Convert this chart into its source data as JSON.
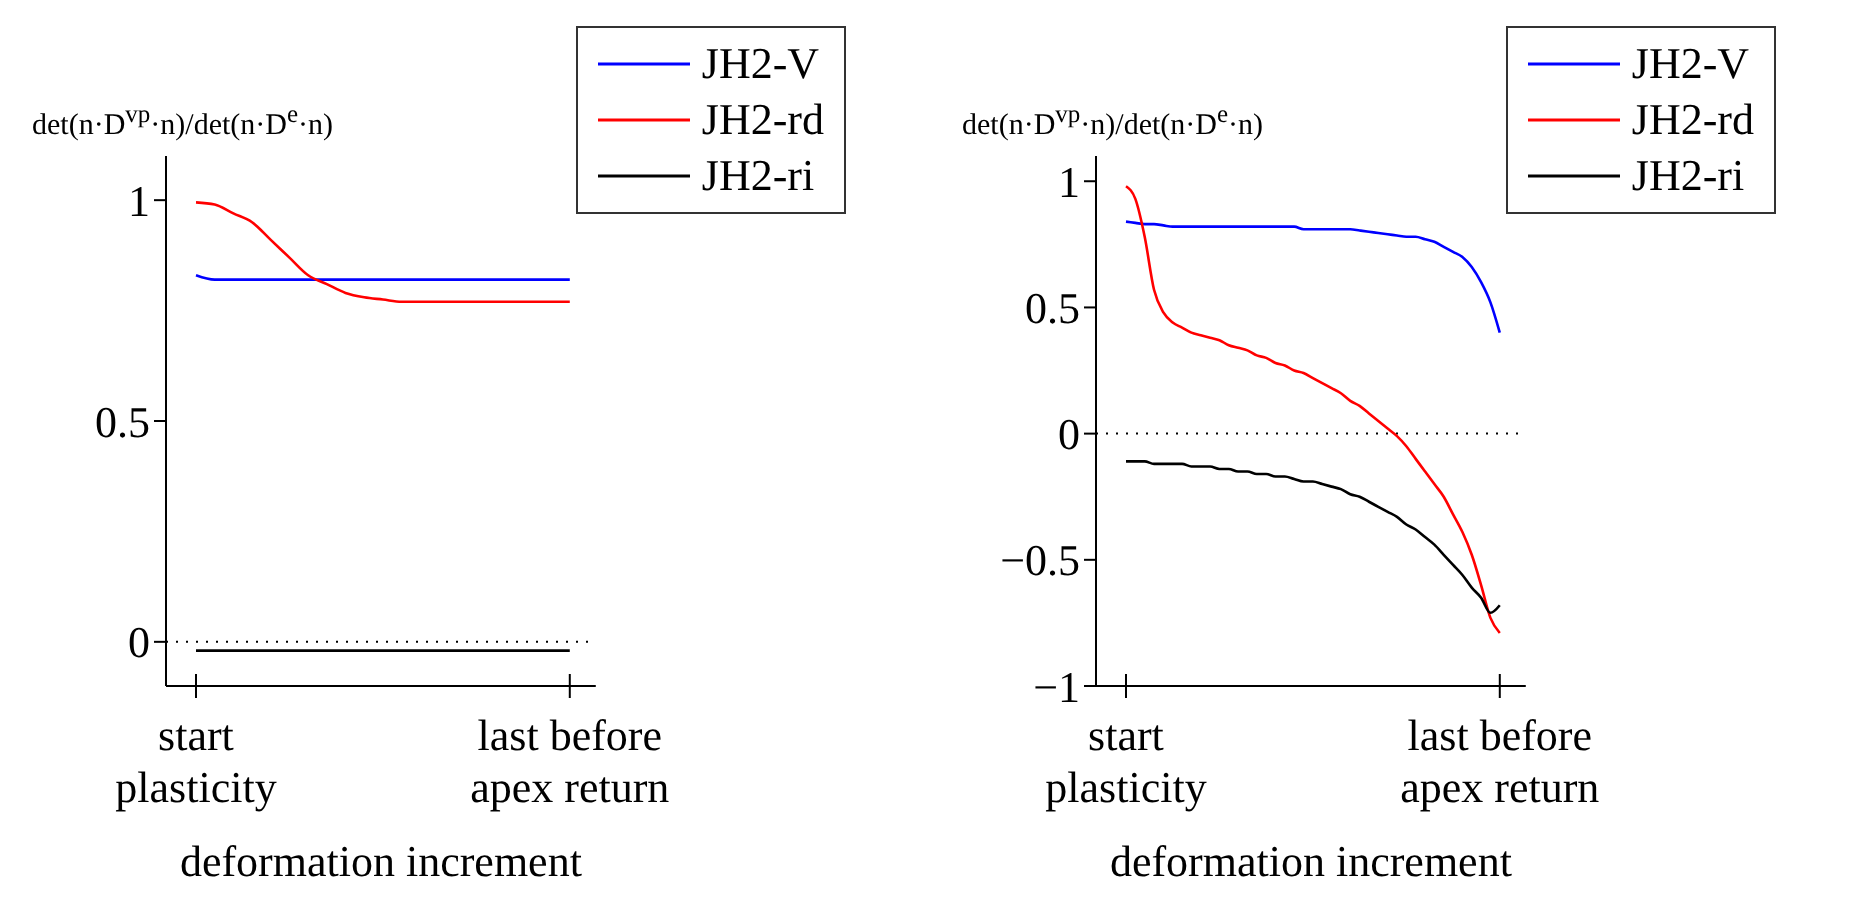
{
  "chart_data": [
    {
      "type": "line",
      "xlabel": "deformation increment",
      "ylabel": "det(n·D$^{vp}$·n)/det(n·D$^{e}$·n)",
      "ylim": [
        -0.1,
        1.1
      ],
      "categories": [
        "start plasticity",
        null,
        null,
        null,
        null,
        null,
        null,
        null,
        null,
        null,
        null,
        null,
        null,
        null,
        null,
        null,
        null,
        null,
        null,
        null,
        "last before apex return"
      ],
      "yticks": [
        0,
        0.5,
        1
      ],
      "legend": "top right",
      "marker": "none",
      "line_style": "solid",
      "ref_lines": [
        {
          "axis": "y",
          "value": 0,
          "label": null,
          "color": "#000000",
          "line_style": "dotted"
        }
      ],
      "series": [
        {
          "name": "JH2-V",
          "color": "#0000ff",
          "values": [
            0.83,
            0.82,
            0.82,
            0.82,
            0.82,
            0.82,
            0.82,
            0.82,
            0.82,
            0.82,
            0.82,
            0.82,
            0.82,
            0.82,
            0.82,
            0.82,
            0.82,
            0.82,
            0.82,
            0.82,
            0.82
          ]
        },
        {
          "name": "JH2-rd",
          "color": "#ff0000",
          "values": [
            0.995,
            0.99,
            0.97,
            0.95,
            0.91,
            0.87,
            0.83,
            0.81,
            0.79,
            0.78,
            0.775,
            0.77,
            0.77,
            0.77,
            0.77,
            0.77,
            0.77,
            0.77,
            0.77,
            0.77,
            0.77
          ]
        },
        {
          "name": "JH2-ri",
          "color": "#000000",
          "values": [
            -0.02,
            -0.02,
            -0.02,
            -0.02,
            -0.02,
            -0.02,
            -0.02,
            -0.02,
            -0.02,
            -0.02,
            -0.02,
            -0.02,
            -0.02,
            -0.02,
            -0.02,
            -0.02,
            -0.02,
            -0.02,
            -0.02,
            -0.02,
            -0.02
          ]
        }
      ]
    },
    {
      "type": "line",
      "xlabel": "deformation increment",
      "ylabel": "det(n·D$^{vp}$·n)/det(n·D$^{e}$·n)",
      "ylim": [
        -1,
        1.1
      ],
      "categories": [
        "start plasticity",
        null,
        null,
        null,
        null,
        null,
        null,
        null,
        null,
        null,
        null,
        null,
        null,
        null,
        null,
        null,
        null,
        null,
        null,
        null,
        null,
        null,
        null,
        null,
        null,
        null,
        null,
        null,
        null,
        null,
        null,
        null,
        null,
        null,
        null,
        null,
        null,
        null,
        null,
        null,
        "last before apex return"
      ],
      "yticks": [
        {
          "value": -1,
          "label": "−1"
        },
        {
          "value": -0.5,
          "label": "−0.5"
        },
        0,
        0.5,
        1
      ],
      "legend": "top right",
      "marker": "none",
      "line_style": "solid",
      "ref_lines": [
        {
          "axis": "y",
          "value": 0,
          "label": null,
          "color": "#000000",
          "line_style": "dotted"
        }
      ],
      "series": [
        {
          "name": "JH2-V",
          "color": "#0000ff",
          "values": [
            0.84,
            0.835,
            0.83,
            0.83,
            0.825,
            0.82,
            0.82,
            0.82,
            0.82,
            0.82,
            0.82,
            0.82,
            0.82,
            0.82,
            0.82,
            0.82,
            0.82,
            0.82,
            0.82,
            0.81,
            0.81,
            0.81,
            0.81,
            0.81,
            0.81,
            0.805,
            0.8,
            0.795,
            0.79,
            0.785,
            0.78,
            0.78,
            0.77,
            0.76,
            0.74,
            0.72,
            0.7,
            0.66,
            0.6,
            0.52,
            0.4
          ]
        },
        {
          "name": "JH2-rd",
          "color": "#ff0000",
          "values": [
            0.98,
            0.93,
            0.78,
            0.57,
            0.48,
            0.44,
            0.42,
            0.4,
            0.39,
            0.38,
            0.37,
            0.35,
            0.34,
            0.33,
            0.31,
            0.3,
            0.28,
            0.27,
            0.25,
            0.24,
            0.22,
            0.2,
            0.18,
            0.16,
            0.13,
            0.11,
            0.08,
            0.05,
            0.02,
            -0.01,
            -0.05,
            -0.1,
            -0.15,
            -0.2,
            -0.25,
            -0.32,
            -0.39,
            -0.48,
            -0.6,
            -0.73,
            -0.79
          ]
        },
        {
          "name": "JH2-ri",
          "color": "#000000",
          "values": [
            -0.11,
            -0.11,
            -0.11,
            -0.12,
            -0.12,
            -0.12,
            -0.12,
            -0.13,
            -0.13,
            -0.13,
            -0.14,
            -0.14,
            -0.15,
            -0.15,
            -0.16,
            -0.16,
            -0.17,
            -0.17,
            -0.18,
            -0.19,
            -0.19,
            -0.2,
            -0.21,
            -0.22,
            -0.24,
            -0.25,
            -0.27,
            -0.29,
            -0.31,
            -0.33,
            -0.36,
            -0.38,
            -0.41,
            -0.44,
            -0.48,
            -0.52,
            -0.56,
            -0.61,
            -0.65,
            -0.71,
            -0.68
          ]
        }
      ]
    }
  ]
}
